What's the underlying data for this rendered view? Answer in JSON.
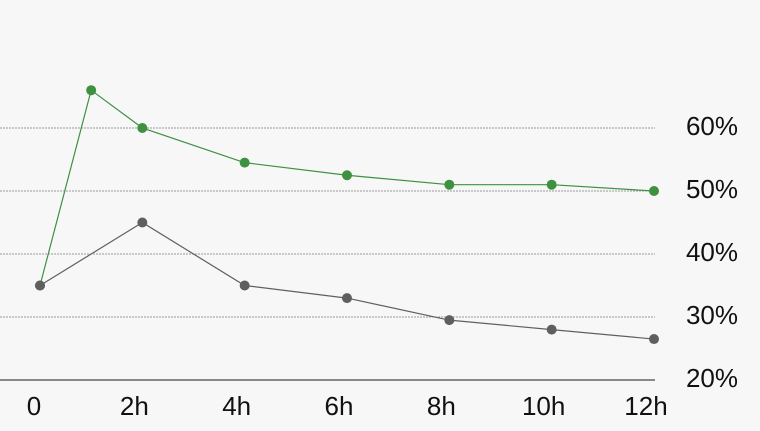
{
  "chart_data": {
    "type": "line",
    "xlim": [
      0,
      12
    ],
    "xticks": [
      0,
      {
        "value": 2,
        "label": "2h"
      },
      {
        "value": 4,
        "label": "4h"
      },
      {
        "value": 6,
        "label": "6h"
      },
      {
        "value": 8,
        "label": "8h"
      },
      {
        "value": 10,
        "label": "10h"
      },
      {
        "value": 12,
        "label": "12h"
      }
    ],
    "ylim": [
      20,
      80
    ],
    "yticks": [
      {
        "value": 20,
        "label": "20%"
      },
      {
        "value": 30,
        "label": "30%"
      },
      {
        "value": 40,
        "label": "40%"
      },
      {
        "value": 50,
        "label": "50%"
      },
      {
        "value": 60,
        "label": "60%"
      }
    ],
    "grid": true,
    "series": [
      {
        "color": "#3d9140",
        "x": [
          0,
          1,
          2,
          4,
          6,
          8,
          10,
          12
        ],
        "values": [
          35,
          66,
          60,
          54.5,
          52.5,
          51,
          51,
          50
        ]
      },
      {
        "color": "#5f5f5f",
        "x": [
          0,
          2,
          4,
          6,
          8,
          10,
          12
        ],
        "values": [
          35,
          45,
          35,
          33,
          29.5,
          28,
          26.5
        ]
      }
    ]
  }
}
